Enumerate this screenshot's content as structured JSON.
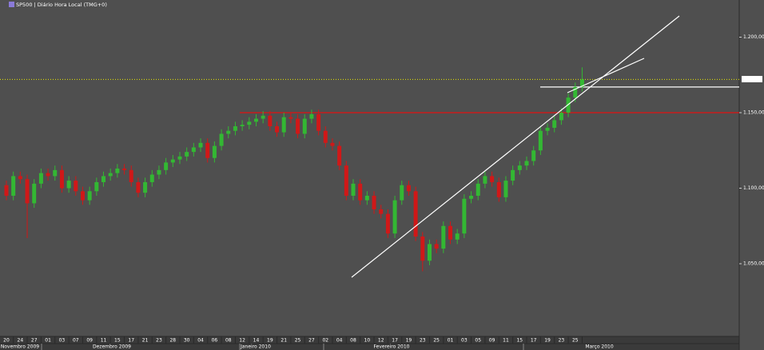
{
  "chart_data": {
    "type": "candlestick",
    "title": "SP500 | Diário Hora Local (TMG+0)",
    "categories": [
      "20",
      null,
      "24",
      null,
      "27",
      null,
      "01",
      null,
      "03",
      null,
      "07",
      null,
      "09",
      null,
      "11",
      null,
      "15",
      null,
      "17",
      null,
      "21",
      null,
      "23",
      null,
      "28",
      null,
      "30",
      null,
      "04",
      null,
      "06",
      null,
      "08",
      null,
      "12",
      null,
      "14",
      null,
      "19",
      null,
      "21",
      null,
      "25",
      null,
      "27",
      null,
      "02",
      null,
      "04",
      null,
      "08",
      null,
      "10",
      null,
      "12",
      null,
      "17",
      null,
      "19",
      null,
      "23",
      null,
      "25",
      null,
      "01",
      null,
      "03",
      null,
      "05",
      null,
      "09",
      null,
      "11",
      null,
      "15",
      null,
      "17",
      null,
      "19",
      null,
      "23",
      null,
      "25",
      null
    ],
    "months": [
      "Novembro 2009",
      "Dezembro 2009",
      "Janeiro 2010",
      "Fevereiro 2010",
      "Março 2010"
    ],
    "open": [
      1102,
      1095,
      1108,
      1106,
      1090,
      1103,
      1110,
      1108,
      1112,
      1100,
      1105,
      1098,
      1092,
      1098,
      1104,
      1108,
      1110,
      1113,
      1112,
      1104,
      1097,
      1104,
      1109,
      1112,
      1117,
      1119,
      1121,
      1124,
      1127,
      1130,
      1120,
      1128,
      1136,
      1138,
      1141,
      1142,
      1144,
      1146,
      1148,
      1141,
      1137,
      1147,
      1146,
      1136,
      1146,
      1149,
      1138,
      1130,
      1128,
      1115,
      1095,
      1103,
      1092,
      1095,
      1086,
      1083,
      1070,
      1092,
      1102,
      1098,
      1068,
      1052,
      1063,
      1060,
      1075,
      1066,
      1070,
      1093,
      1095,
      1103,
      1108,
      1104,
      1094,
      1105,
      1112,
      1115,
      1118,
      1125,
      1138,
      1140,
      1145,
      1150,
      1160,
      1167
    ],
    "high": [
      1105,
      1111,
      1111,
      1109,
      1106,
      1113,
      1113,
      1115,
      1115,
      1108,
      1108,
      1101,
      1101,
      1107,
      1111,
      1113,
      1116,
      1116,
      1115,
      1107,
      1107,
      1112,
      1115,
      1120,
      1122,
      1124,
      1127,
      1130,
      1133,
      1133,
      1131,
      1139,
      1141,
      1144,
      1145,
      1147,
      1149,
      1151,
      1151,
      1144,
      1150,
      1150,
      1149,
      1149,
      1152,
      1152,
      1141,
      1133,
      1131,
      1118,
      1106,
      1106,
      1098,
      1098,
      1089,
      1086,
      1095,
      1105,
      1105,
      1101,
      1071,
      1066,
      1066,
      1078,
      1078,
      1073,
      1096,
      1098,
      1106,
      1111,
      1111,
      1107,
      1108,
      1115,
      1118,
      1121,
      1128,
      1141,
      1143,
      1148,
      1153,
      1163,
      1170,
      1180
    ],
    "low": [
      1092,
      1092,
      1103,
      1067,
      1087,
      1100,
      1105,
      1105,
      1097,
      1097,
      1095,
      1089,
      1089,
      1095,
      1101,
      1105,
      1107,
      1109,
      1101,
      1094,
      1094,
      1101,
      1106,
      1109,
      1114,
      1116,
      1118,
      1121,
      1124,
      1117,
      1117,
      1125,
      1133,
      1135,
      1138,
      1139,
      1141,
      1143,
      1138,
      1134,
      1134,
      1143,
      1133,
      1133,
      1143,
      1135,
      1127,
      1125,
      1112,
      1092,
      1092,
      1089,
      1089,
      1083,
      1080,
      1067,
      1067,
      1089,
      1095,
      1065,
      1045,
      1049,
      1057,
      1057,
      1063,
      1063,
      1067,
      1090,
      1092,
      1100,
      1101,
      1091,
      1091,
      1102,
      1109,
      1112,
      1115,
      1122,
      1135,
      1137,
      1142,
      1147,
      1157,
      1164
    ],
    "close": [
      1095,
      1108,
      1106,
      1090,
      1103,
      1110,
      1108,
      1112,
      1100,
      1105,
      1098,
      1092,
      1098,
      1104,
      1108,
      1110,
      1113,
      1112,
      1104,
      1097,
      1104,
      1109,
      1112,
      1117,
      1119,
      1121,
      1124,
      1127,
      1130,
      1120,
      1128,
      1136,
      1138,
      1141,
      1142,
      1144,
      1146,
      1148,
      1141,
      1137,
      1147,
      1146,
      1136,
      1146,
      1149,
      1138,
      1130,
      1128,
      1115,
      1095,
      1103,
      1092,
      1095,
      1086,
      1083,
      1070,
      1092,
      1102,
      1098,
      1068,
      1052,
      1063,
      1060,
      1075,
      1066,
      1070,
      1093,
      1095,
      1103,
      1108,
      1104,
      1094,
      1105,
      1112,
      1115,
      1118,
      1125,
      1138,
      1140,
      1145,
      1150,
      1160,
      1167,
      1172
    ],
    "up_color": "#33b833",
    "down_color": "#d01818",
    "levels": [
      {
        "value": 1172,
        "color": "#e6e600"
      },
      {
        "value": 1150,
        "color": "#e01010"
      },
      {
        "value": 1167,
        "color": "#ffffff"
      }
    ],
    "ylim": [
      1002.4,
      1224.6
    ],
    "yticks": [
      {
        "value": 1050,
        "label": "1.050,00"
      },
      {
        "value": 1100,
        "label": "1.100,00"
      },
      {
        "value": 1150,
        "label": "1.150,00"
      },
      {
        "value": 1200,
        "label": "1.200,00"
      }
    ]
  }
}
